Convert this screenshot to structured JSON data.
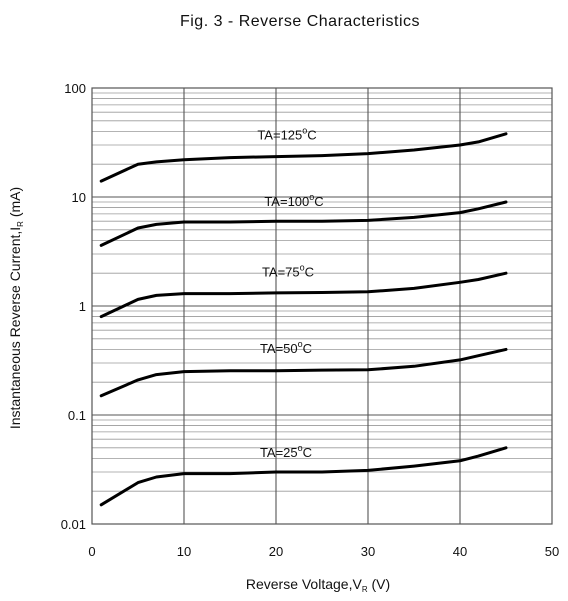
{
  "chart_data": {
    "type": "line",
    "title": "Fig. 3 - Reverse Characteristics",
    "xlabel": "Reverse Voltage,V",
    "xlabel_sub": "R",
    "xlabel_tail": " (V)",
    "ylabel": "Instantaneous Reverse Current,I",
    "ylabel_sub": "R",
    "ylabel_tail": " (mA)",
    "xlim": [
      0,
      50
    ],
    "ylim": [
      0.01,
      100
    ],
    "yscale": "log",
    "x_ticks": [
      "0",
      "10",
      "20",
      "30",
      "40",
      "50"
    ],
    "y_ticks": [
      "0.01",
      "0.1",
      "1",
      "10",
      "100"
    ],
    "grid": true,
    "series": [
      {
        "name": "TA=125 °C",
        "label": "TA=125",
        "unit": "C",
        "x": [
          1,
          5,
          7,
          10,
          15,
          20,
          25,
          30,
          35,
          40,
          42,
          45
        ],
        "y": [
          14,
          20,
          21,
          22,
          23,
          23.5,
          24,
          25,
          27,
          30,
          32,
          38
        ]
      },
      {
        "name": "TA=100 °C",
        "label": "TA=100",
        "unit": "C",
        "x": [
          1,
          5,
          7,
          10,
          15,
          20,
          25,
          30,
          35,
          40,
          42,
          45
        ],
        "y": [
          3.6,
          5.2,
          5.6,
          5.9,
          5.9,
          6.0,
          6.0,
          6.1,
          6.5,
          7.2,
          7.8,
          9.0
        ]
      },
      {
        "name": "TA=75 °C",
        "label": "TA=75",
        "unit": "C",
        "x": [
          1,
          5,
          7,
          10,
          15,
          20,
          25,
          30,
          35,
          40,
          42,
          45
        ],
        "y": [
          0.8,
          1.15,
          1.25,
          1.3,
          1.3,
          1.32,
          1.33,
          1.35,
          1.45,
          1.65,
          1.75,
          2.0
        ]
      },
      {
        "name": "TA=50 °C",
        "label": "TA=50",
        "unit": "C",
        "x": [
          1,
          5,
          7,
          10,
          15,
          20,
          25,
          30,
          35,
          40,
          42,
          45
        ],
        "y": [
          0.15,
          0.21,
          0.235,
          0.25,
          0.255,
          0.255,
          0.258,
          0.26,
          0.28,
          0.32,
          0.35,
          0.4
        ]
      },
      {
        "name": "TA=25 °C",
        "label": "TA=25",
        "unit": "C",
        "x": [
          1,
          5,
          7,
          10,
          15,
          20,
          25,
          30,
          35,
          40,
          42,
          45
        ],
        "y": [
          0.015,
          0.024,
          0.027,
          0.029,
          0.029,
          0.03,
          0.03,
          0.031,
          0.034,
          0.038,
          0.042,
          0.05
        ]
      }
    ]
  }
}
